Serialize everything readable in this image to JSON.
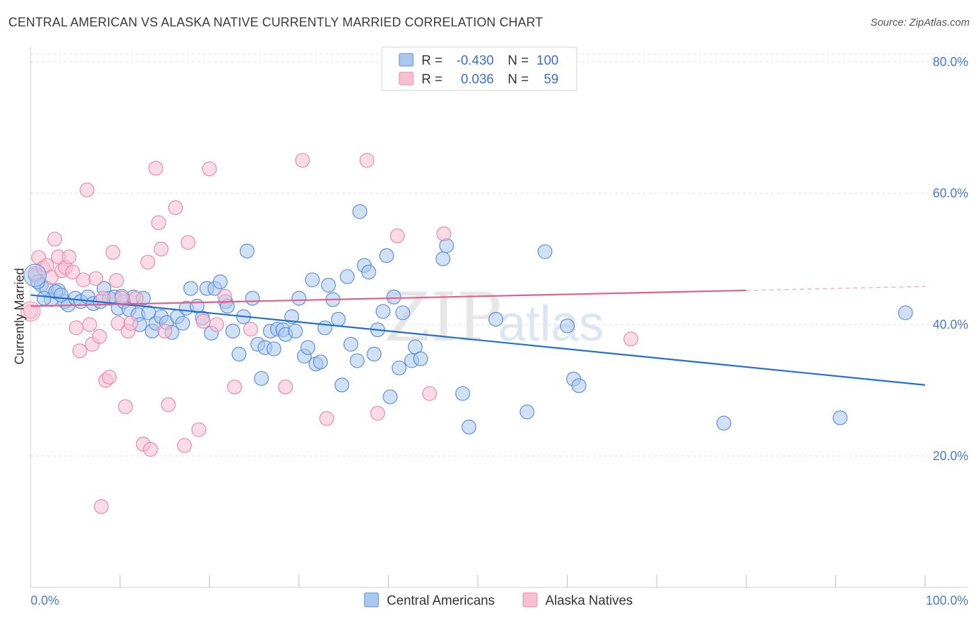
{
  "title": "CENTRAL AMERICAN VS ALASKA NATIVE CURRENTLY MARRIED CORRELATION CHART",
  "source": "Source: ZipAtlas.com",
  "watermark": {
    "zip": "ZIP",
    "atlas": "atlas"
  },
  "colors": {
    "blue_fill": "#a9c8ef",
    "blue_stroke": "#5b8fd6",
    "blue_line": "#1f6fd1",
    "pink_fill": "#f7bfd2",
    "pink_stroke": "#e889a8",
    "pink_line": "#e0608b",
    "grid": "#dddddd",
    "tick_label": "#4a7cc9"
  },
  "legend_top": {
    "rows": [
      {
        "r_label": "R =",
        "r_value": "-0.430",
        "n_label": "N =",
        "n_value": "100"
      },
      {
        "r_label": "R =",
        "r_value": "0.036",
        "n_label": "N =",
        "n_value": "59"
      }
    ]
  },
  "chart_data": {
    "type": "scatter",
    "title": "CENTRAL AMERICAN VS ALASKA NATIVE CURRENTLY MARRIED CORRELATION CHART",
    "xlabel": "",
    "ylabel": "Currently Married",
    "xlim": [
      0,
      100
    ],
    "ylim": [
      0,
      82
    ],
    "x_tick_labels": [
      "0.0%",
      "100.0%"
    ],
    "y_ticks": [
      20,
      40,
      60,
      80
    ],
    "y_tick_labels": [
      "20.0%",
      "40.0%",
      "60.0%",
      "80.0%"
    ],
    "grid": true,
    "legend_position": "bottom",
    "series": [
      {
        "name": "Central Americans",
        "r": -0.43,
        "n": 100,
        "trend": {
          "x": [
            0,
            100
          ],
          "y": [
            44.5,
            30.8
          ],
          "dashed_after": null
        },
        "points": [
          [
            0.5,
            47.5
          ],
          [
            1.2,
            46
          ],
          [
            1.8,
            45.5
          ],
          [
            2.3,
            43.8
          ],
          [
            3.1,
            45.2
          ],
          [
            3.8,
            43.5
          ],
          [
            4.2,
            43
          ],
          [
            5,
            44
          ],
          [
            5.6,
            43.5
          ],
          [
            6.4,
            44.2
          ],
          [
            7,
            43.2
          ],
          [
            7.8,
            43.5
          ],
          [
            8.2,
            45.5
          ],
          [
            8.8,
            44
          ],
          [
            9.4,
            44.2
          ],
          [
            9.8,
            42.5
          ],
          [
            10.4,
            43.5
          ],
          [
            11,
            42.3
          ],
          [
            11.5,
            44.2
          ],
          [
            12,
            41.5
          ],
          [
            12.6,
            44
          ],
          [
            13.2,
            41.8
          ],
          [
            13.6,
            39
          ],
          [
            14,
            40.2
          ],
          [
            14.6,
            41.2
          ],
          [
            15.2,
            40.3
          ],
          [
            15.8,
            38.8
          ],
          [
            16.4,
            41.2
          ],
          [
            17,
            40.2
          ],
          [
            17.4,
            42.5
          ],
          [
            17.9,
            45.5
          ],
          [
            18.6,
            42.8
          ],
          [
            19.2,
            41
          ],
          [
            19.7,
            45.5
          ],
          [
            20.2,
            38.7
          ],
          [
            20.6,
            45.5
          ],
          [
            21.2,
            46.5
          ],
          [
            21.8,
            43.5
          ],
          [
            22,
            42.8
          ],
          [
            22.6,
            39
          ],
          [
            23.3,
            35.5
          ],
          [
            23.8,
            41.2
          ],
          [
            24.2,
            51.2
          ],
          [
            24.8,
            44
          ],
          [
            25.4,
            37
          ],
          [
            25.8,
            31.8
          ],
          [
            26.2,
            36.5
          ],
          [
            26.8,
            39
          ],
          [
            27.2,
            36.3
          ],
          [
            27.6,
            39.3
          ],
          [
            28.2,
            39.2
          ],
          [
            28.5,
            38.5
          ],
          [
            29.2,
            41.2
          ],
          [
            29.6,
            39
          ],
          [
            30,
            44
          ],
          [
            30.6,
            35.2
          ],
          [
            31,
            36.5
          ],
          [
            31.5,
            46.8
          ],
          [
            31.9,
            34
          ],
          [
            32.4,
            34.3
          ],
          [
            32.9,
            39.5
          ],
          [
            33.3,
            46
          ],
          [
            33.8,
            43.8
          ],
          [
            34.4,
            40.8
          ],
          [
            34.8,
            30.8
          ],
          [
            35.4,
            47.3
          ],
          [
            35.8,
            37
          ],
          [
            36.5,
            34.5
          ],
          [
            36.8,
            57.2
          ],
          [
            37.3,
            49
          ],
          [
            37.8,
            48
          ],
          [
            38.4,
            35.5
          ],
          [
            38.8,
            39.2
          ],
          [
            39.4,
            42
          ],
          [
            39.8,
            50.5
          ],
          [
            40.2,
            29
          ],
          [
            40.6,
            44.2
          ],
          [
            41.2,
            33.4
          ],
          [
            41.6,
            41.8
          ],
          [
            42.6,
            34.5
          ],
          [
            43,
            36.6
          ],
          [
            43.6,
            34.8
          ],
          [
            46.1,
            50
          ],
          [
            46.5,
            52
          ],
          [
            48.3,
            29.5
          ],
          [
            49,
            24.4
          ],
          [
            52,
            40.8
          ],
          [
            55.5,
            26.7
          ],
          [
            57.5,
            51.1
          ],
          [
            60,
            39.8
          ],
          [
            60.7,
            31.7
          ],
          [
            61.3,
            30.7
          ],
          [
            77.5,
            25
          ],
          [
            90.5,
            25.8
          ],
          [
            97.8,
            41.8
          ],
          [
            0.8,
            46.5
          ],
          [
            1.5,
            44
          ],
          [
            2.8,
            45
          ],
          [
            3.4,
            44.5
          ],
          [
            10.2,
            44.3
          ],
          [
            12.2,
            40
          ]
        ]
      },
      {
        "name": "Alaska Natives",
        "r": 0.036,
        "n": 59,
        "trend": {
          "x": [
            0,
            80,
            100
          ],
          "y": [
            42.8,
            45.2,
            45.8
          ],
          "dashed_after": 80
        },
        "points": [
          [
            0,
            42
          ],
          [
            0.5,
            47.8
          ],
          [
            0.9,
            50.2
          ],
          [
            1.4,
            48.6
          ],
          [
            1.8,
            49
          ],
          [
            2.3,
            47.2
          ],
          [
            2.7,
            53
          ],
          [
            3.1,
            50.3
          ],
          [
            3.5,
            48.2
          ],
          [
            3.9,
            48.7
          ],
          [
            4.3,
            50.3
          ],
          [
            4.7,
            48
          ],
          [
            5.1,
            39.5
          ],
          [
            5.5,
            36
          ],
          [
            5.9,
            46.8
          ],
          [
            6.3,
            60.5
          ],
          [
            6.6,
            40
          ],
          [
            6.9,
            37
          ],
          [
            7.3,
            47
          ],
          [
            7.7,
            38.2
          ],
          [
            8.1,
            44
          ],
          [
            8.4,
            31.5
          ],
          [
            8.8,
            32
          ],
          [
            9.2,
            51
          ],
          [
            9.6,
            46.7
          ],
          [
            9.8,
            40.2
          ],
          [
            10.2,
            44
          ],
          [
            10.6,
            27.5
          ],
          [
            10.9,
            39
          ],
          [
            11.2,
            40.2
          ],
          [
            11.8,
            44
          ],
          [
            12.6,
            21.8
          ],
          [
            13.1,
            49.5
          ],
          [
            13.4,
            21
          ],
          [
            14,
            63.8
          ],
          [
            14.3,
            55.5
          ],
          [
            14.6,
            51.5
          ],
          [
            15,
            39
          ],
          [
            15.4,
            27.8
          ],
          [
            16.2,
            57.8
          ],
          [
            17.2,
            21.6
          ],
          [
            17.6,
            52.5
          ],
          [
            18.8,
            24
          ],
          [
            19.3,
            40.5
          ],
          [
            20,
            63.7
          ],
          [
            20.8,
            40
          ],
          [
            21.7,
            44.3
          ],
          [
            22.8,
            30.5
          ],
          [
            24.6,
            39.3
          ],
          [
            28.5,
            30.5
          ],
          [
            30.4,
            65
          ],
          [
            33.1,
            25.7
          ],
          [
            37.6,
            65
          ],
          [
            38.8,
            26.5
          ],
          [
            41,
            53.5
          ],
          [
            44.6,
            29.5
          ],
          [
            46.2,
            53.8
          ],
          [
            7.9,
            12.3
          ],
          [
            67.1,
            37.8
          ]
        ]
      }
    ]
  }
}
